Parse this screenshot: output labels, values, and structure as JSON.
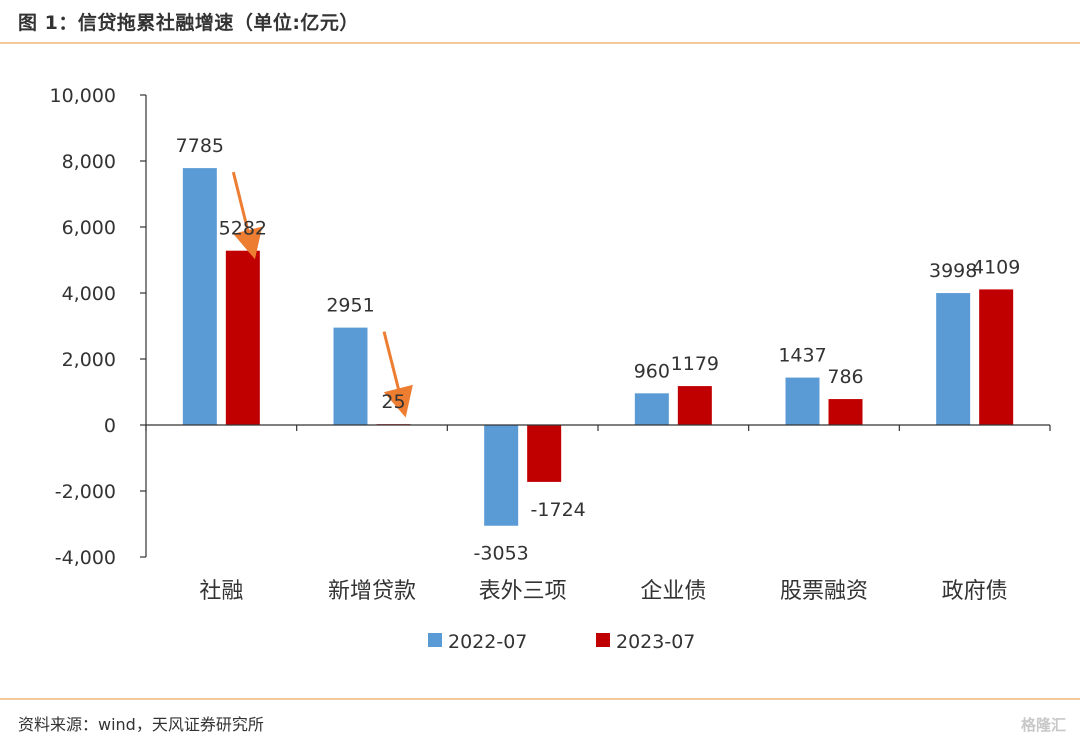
{
  "header": {
    "title": "图 1：信贷拖累社融增速（单位:亿元）"
  },
  "footer": {
    "source": "资料来源：wind，天风证券研究所",
    "watermark": "格隆汇"
  },
  "colors": {
    "series_2022": "#5b9bd5",
    "series_2023": "#c00000",
    "arrow": "#ed7d31",
    "rule": "#f3c89a"
  },
  "chart_data": {
    "type": "bar",
    "title": "",
    "categories": [
      "社融",
      "新增贷款",
      "表外三项",
      "企业债",
      "股票融资",
      "政府债"
    ],
    "series": [
      {
        "name": "2022-07",
        "values": [
          7785,
          2951,
          -3053,
          960,
          1437,
          3998
        ]
      },
      {
        "name": "2023-07",
        "values": [
          5282,
          25,
          -1724,
          1179,
          786,
          4109
        ]
      }
    ],
    "data_labels": [
      [
        "7785",
        "2951",
        "-3053",
        "960",
        "1437",
        "3998"
      ],
      [
        "5282",
        "25",
        "-1724",
        "1179",
        "786",
        "4109"
      ]
    ],
    "ylim": [
      -4000,
      10000
    ],
    "yticks": [
      -4000,
      -2000,
      0,
      2000,
      4000,
      6000,
      8000,
      10000
    ],
    "ytick_labels": [
      "-4,000",
      "-2,000",
      "0",
      "2,000",
      "4,000",
      "6,000",
      "8,000",
      "10,000"
    ],
    "xlabel": "",
    "ylabel": "",
    "legend_position": "bottom",
    "grid": false,
    "annotations": [
      {
        "type": "arrow",
        "category": "社融",
        "from": 7785,
        "to": 5282
      },
      {
        "type": "arrow",
        "category": "新增贷款",
        "from": 2951,
        "to": 25
      }
    ]
  }
}
